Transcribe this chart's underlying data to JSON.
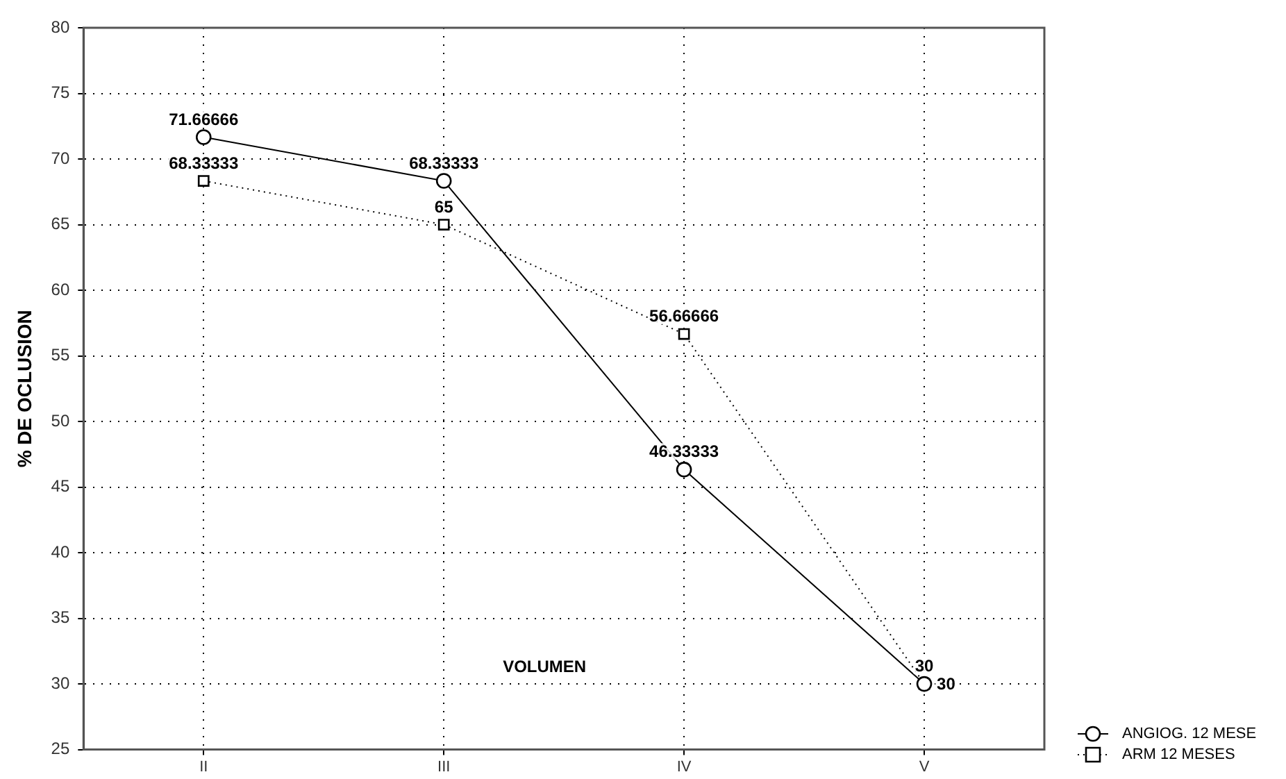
{
  "chart_data": {
    "type": "line",
    "xlabel": "VOLUMEN",
    "ylabel": "% DE OCLUSION",
    "categories": [
      "II",
      "III",
      "IV",
      "V"
    ],
    "series": [
      {
        "name": "ANGIOG. 12 MESE",
        "color": "#000000",
        "values": [
          71.66666,
          68.33333,
          46.33333,
          30
        ],
        "marker": "circle",
        "line_style": "solid"
      },
      {
        "name": "ARM 12 MESES",
        "color": "#000000",
        "values": [
          68.33333,
          65,
          56.66666,
          30
        ],
        "marker": "square",
        "line_style": "dotted"
      }
    ],
    "ylim": [
      25,
      80
    ],
    "yticks": [
      25,
      30,
      35,
      40,
      45,
      50,
      55,
      60,
      65,
      70,
      75,
      80
    ],
    "grid": true,
    "legend": "bottom right",
    "data_labels": true
  }
}
